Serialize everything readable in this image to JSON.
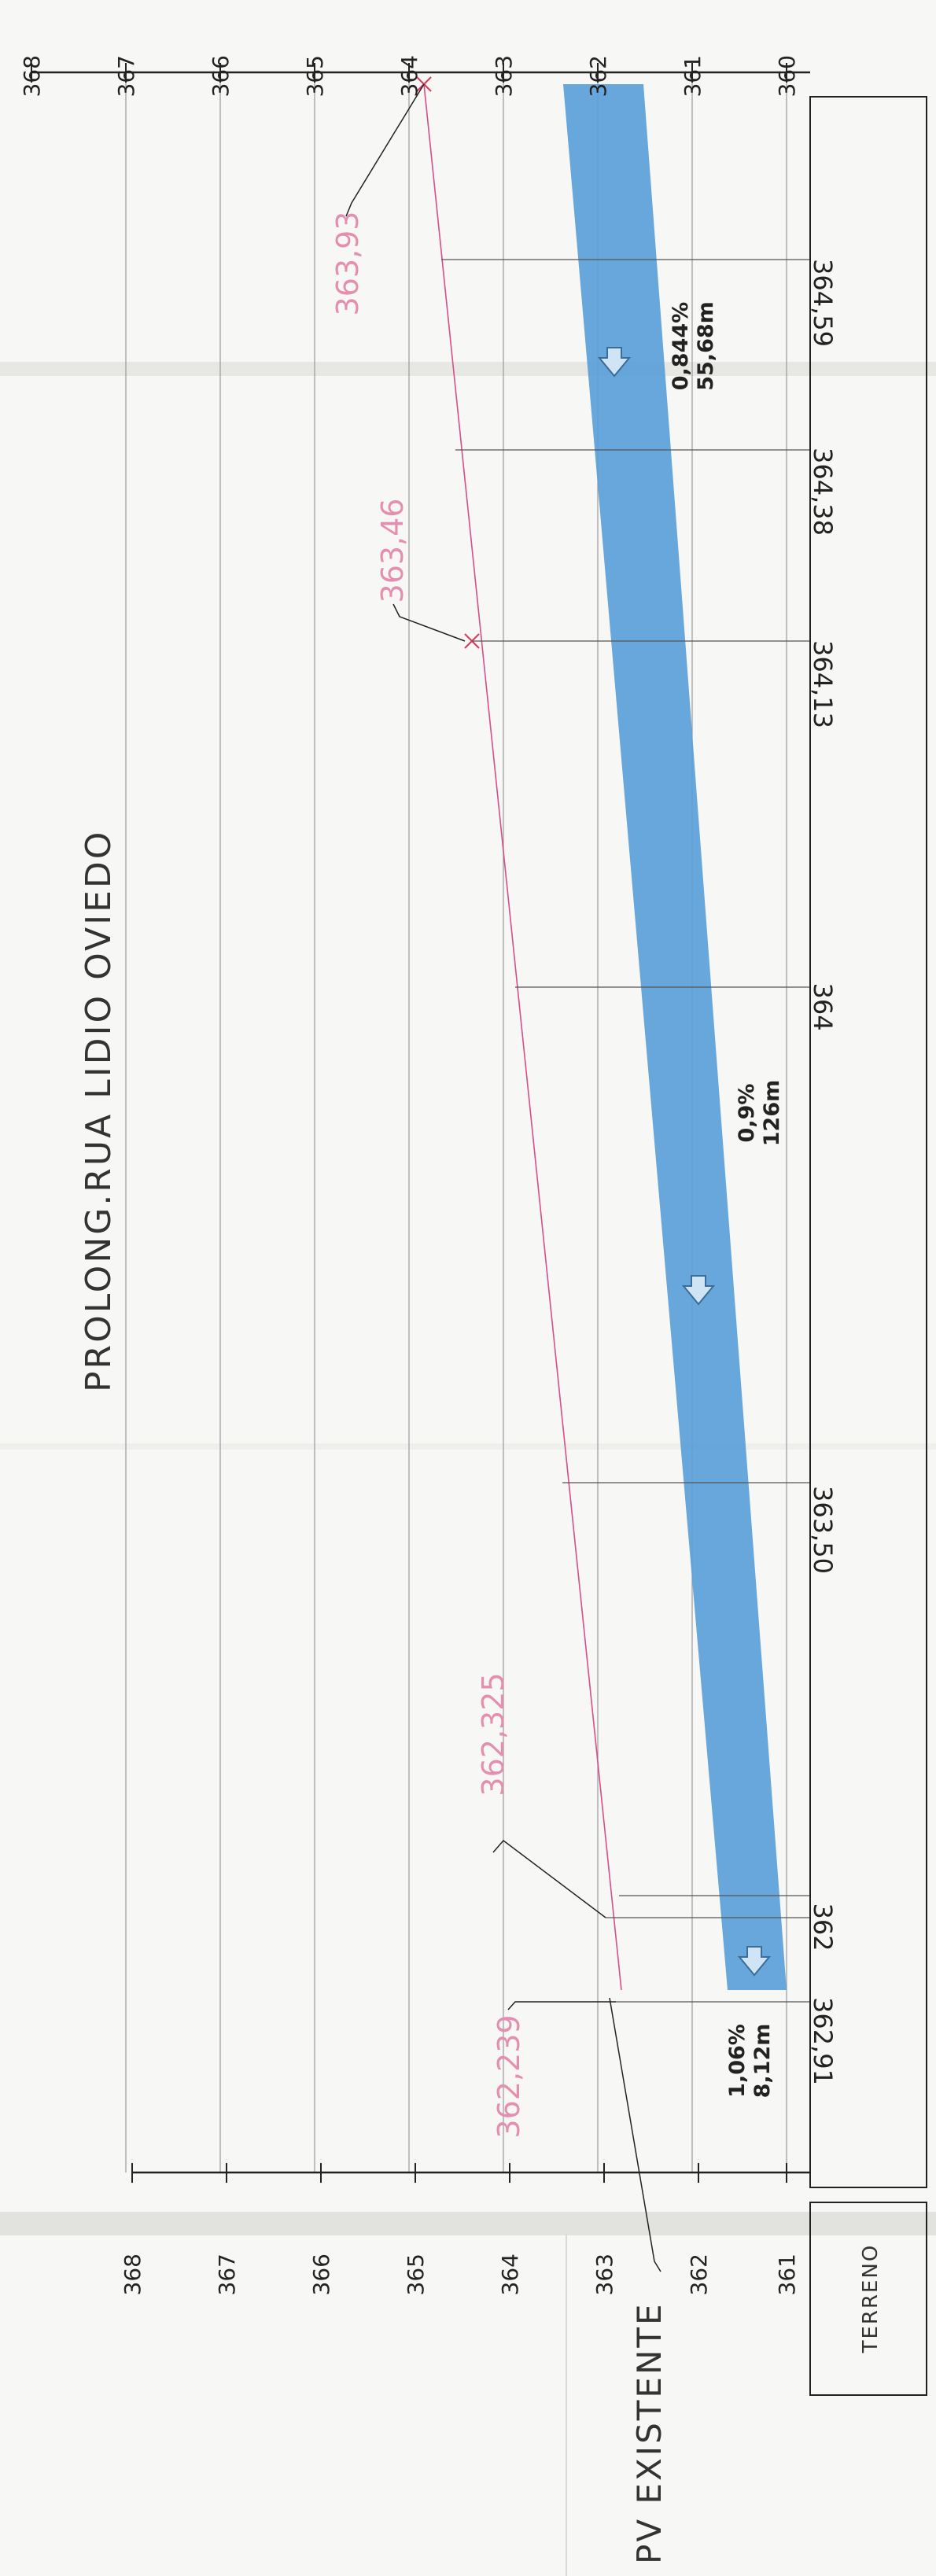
{
  "title": "PROLONG.RUA LIDIO OVIEDO",
  "pv_label": "PV EXISTENTE",
  "terreno_label": "TERRENO",
  "top_axis_ticks": [
    "368",
    "367",
    "366",
    "365",
    "364",
    "363",
    "362",
    "361",
    "360"
  ],
  "lower_axis_ticks": [
    "368",
    "367",
    "366",
    "365",
    "364",
    "363",
    "362",
    "361"
  ],
  "pink_labels": [
    "363,93",
    "363,46",
    "362,325",
    "362,239"
  ],
  "terrain_labels": [
    "364,59",
    "364,38",
    "364,13",
    "364",
    "363,50",
    "362",
    "362,91"
  ],
  "segments": [
    {
      "slope": "0,844%",
      "length": "55,68m"
    },
    {
      "slope": "0,9%",
      "length": "126m"
    },
    {
      "slope": "1,06%",
      "length": "8,12m"
    }
  ],
  "colors": {
    "pipe_fill": "#5b9fd8",
    "pink": "#e58fb0",
    "pink_line": "#d64f8a",
    "grid": "#9a9a9a",
    "ink": "#222222"
  }
}
